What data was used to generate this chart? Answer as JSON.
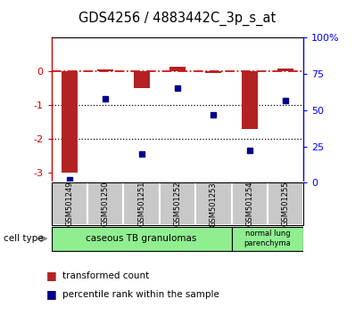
{
  "title": "GDS4256 / 4883442C_3p_s_at",
  "samples": [
    "GSM501249",
    "GSM501250",
    "GSM501251",
    "GSM501252",
    "GSM501253",
    "GSM501254",
    "GSM501255"
  ],
  "red_values": [
    -3.0,
    0.05,
    -0.5,
    0.15,
    -0.05,
    -1.7,
    0.1
  ],
  "blue_values": [
    2,
    58,
    20,
    65,
    47,
    22,
    57
  ],
  "ylim_left": [
    -3.3,
    1.0
  ],
  "ylim_right": [
    0,
    100
  ],
  "yticks_left": [
    -3,
    -2,
    -1,
    0
  ],
  "ytick_labels_right": [
    "0",
    "25",
    "50",
    "75",
    "100%"
  ],
  "yticks_right": [
    0,
    25,
    50,
    75,
    100
  ],
  "bar_color": "#B22222",
  "dot_color": "#00008B",
  "refline_color": "#CC0000",
  "legend1_label": "transformed count",
  "legend2_label": "percentile rank within the sample",
  "bg_color": "#ffffff",
  "cell_type_label": "cell type",
  "group1_label": "caseous TB granulomas",
  "group2_label": "normal lung\nparenchyma",
  "group1_color": "#90EE90",
  "group2_color": "#90EE90",
  "group1_samples": 5,
  "group2_samples": 2,
  "bar_width": 0.45
}
